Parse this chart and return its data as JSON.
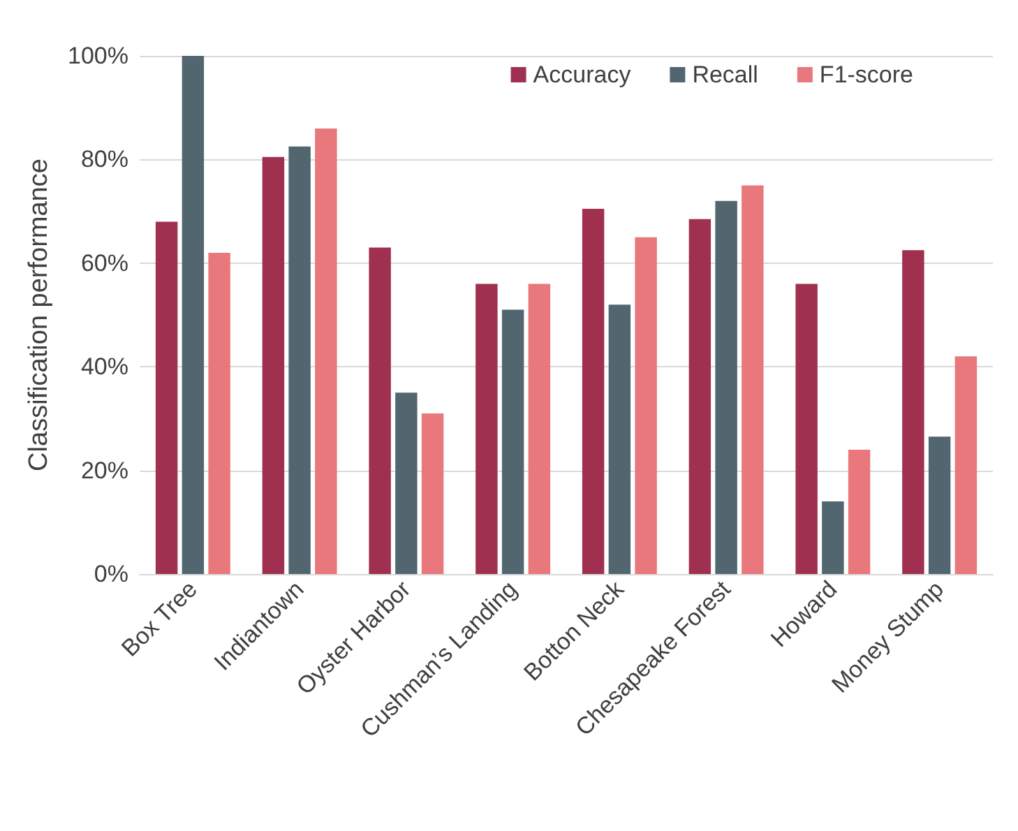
{
  "chart_data": {
    "type": "bar",
    "ylabel": "Classification performance",
    "categories": [
      "Box Tree",
      "Indiantown",
      "Oyster Harbor",
      "Cushman’s Landing",
      "Botton Neck",
      "Chesapeake Forest",
      "Howard",
      "Money Stump"
    ],
    "series": [
      {
        "name": "Accuracy",
        "color": "#a0304f",
        "values": [
          68,
          80.5,
          63,
          56,
          70.5,
          68.5,
          56,
          62.5
        ]
      },
      {
        "name": "Recall",
        "color": "#526670",
        "values": [
          100,
          82.5,
          35,
          51,
          52,
          72,
          14,
          26.5
        ]
      },
      {
        "name": "F1-score",
        "color": "#e8787c",
        "values": [
          62,
          86,
          31,
          56,
          65,
          75,
          24,
          42
        ]
      }
    ],
    "ylim": [
      0,
      100
    ],
    "yticks": [
      {
        "value": 0,
        "label": "0%"
      },
      {
        "value": 20,
        "label": "20%"
      },
      {
        "value": 40,
        "label": "40%"
      },
      {
        "value": 60,
        "label": "60%"
      },
      {
        "value": 80,
        "label": "80%"
      },
      {
        "value": 100,
        "label": "100%"
      }
    ],
    "grid": "y",
    "legend": "top right"
  }
}
